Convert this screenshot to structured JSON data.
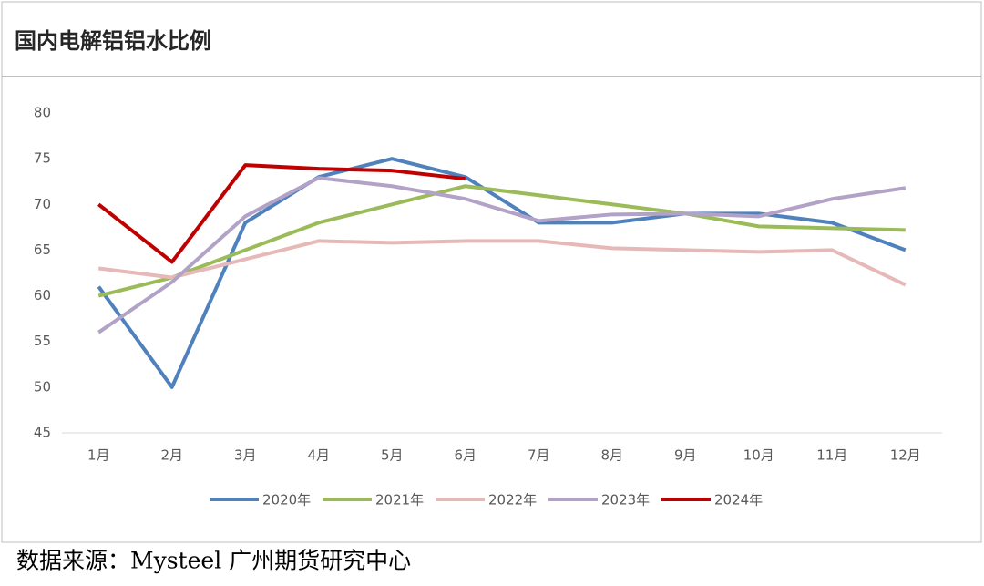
{
  "chart_data": {
    "type": "line",
    "title": "国内电解铝铝水比例",
    "categories": [
      "1月",
      "2月",
      "3月",
      "4月",
      "5月",
      "6月",
      "7月",
      "8月",
      "9月",
      "10月",
      "11月",
      "12月"
    ],
    "series": [
      {
        "name": "2020年",
        "color": "#4f81bd",
        "values": [
          61,
          50,
          68,
          73,
          75,
          73,
          68,
          68,
          69,
          69,
          68,
          65
        ]
      },
      {
        "name": "2021年",
        "color": "#9bbb59",
        "values": [
          60,
          62,
          65,
          68,
          70,
          72,
          71,
          70,
          69,
          67.6,
          67.4,
          67.2
        ]
      },
      {
        "name": "2022年",
        "color": "#e6b9b8",
        "values": [
          63,
          62,
          64,
          66,
          65.8,
          66,
          66,
          65.2,
          65,
          64.8,
          65,
          61.2
        ]
      },
      {
        "name": "2023年",
        "color": "#b3a2c7",
        "values": [
          56,
          61.5,
          68.7,
          72.9,
          72,
          70.6,
          68.2,
          68.9,
          69,
          68.7,
          70.6,
          71.8
        ]
      },
      {
        "name": "2024年",
        "color": "#c00000",
        "values": [
          70,
          63.7,
          74.3,
          73.9,
          73.7,
          72.8,
          null,
          null,
          null,
          null,
          null,
          null
        ]
      }
    ],
    "ylim": [
      45,
      80
    ],
    "yticks": [
      45,
      50,
      55,
      60,
      65,
      70,
      75,
      80
    ],
    "source": "数据来源：Mysteel  广州期货研究中心"
  }
}
